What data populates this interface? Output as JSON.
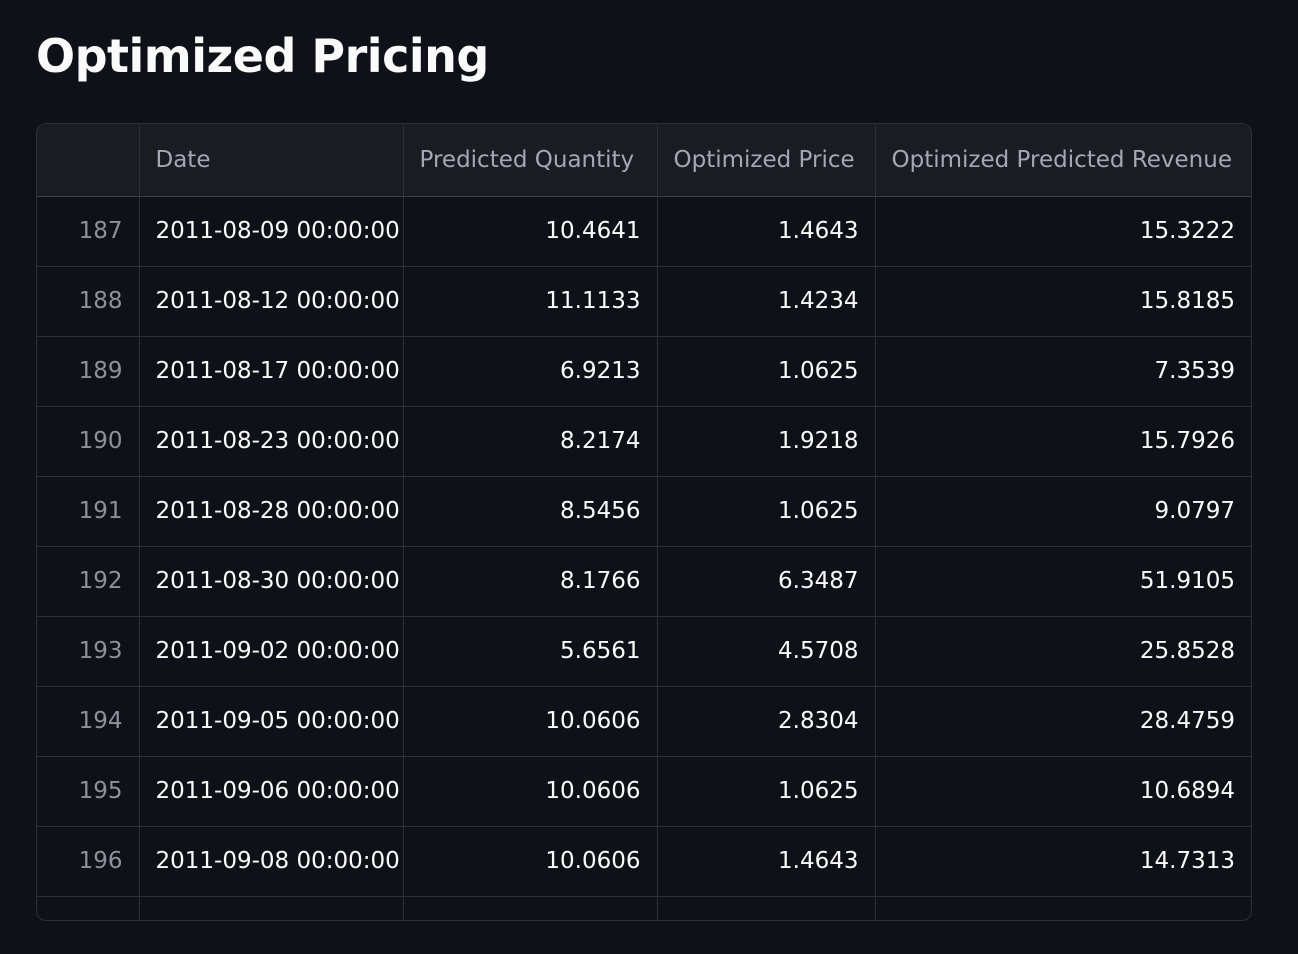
{
  "page": {
    "title": "Optimized Pricing"
  },
  "table": {
    "columns": [
      "",
      "Date",
      "Predicted Quantity",
      "Optimized Price",
      "Optimized Predicted Revenue"
    ],
    "rows": [
      {
        "index": "187",
        "date": "2011-08-09 00:00:00",
        "quantity": "10.4641",
        "price": "1.4643",
        "revenue": "15.3222"
      },
      {
        "index": "188",
        "date": "2011-08-12 00:00:00",
        "quantity": "11.1133",
        "price": "1.4234",
        "revenue": "15.8185"
      },
      {
        "index": "189",
        "date": "2011-08-17 00:00:00",
        "quantity": "6.9213",
        "price": "1.0625",
        "revenue": "7.3539"
      },
      {
        "index": "190",
        "date": "2011-08-23 00:00:00",
        "quantity": "8.2174",
        "price": "1.9218",
        "revenue": "15.7926"
      },
      {
        "index": "191",
        "date": "2011-08-28 00:00:00",
        "quantity": "8.5456",
        "price": "1.0625",
        "revenue": "9.0797"
      },
      {
        "index": "192",
        "date": "2011-08-30 00:00:00",
        "quantity": "8.1766",
        "price": "6.3487",
        "revenue": "51.9105"
      },
      {
        "index": "193",
        "date": "2011-09-02 00:00:00",
        "quantity": "5.6561",
        "price": "4.5708",
        "revenue": "25.8528"
      },
      {
        "index": "194",
        "date": "2011-09-05 00:00:00",
        "quantity": "10.0606",
        "price": "2.8304",
        "revenue": "28.4759"
      },
      {
        "index": "195",
        "date": "2011-09-06 00:00:00",
        "quantity": "10.0606",
        "price": "1.0625",
        "revenue": "10.6894"
      },
      {
        "index": "196",
        "date": "2011-09-08 00:00:00",
        "quantity": "10.0606",
        "price": "1.4643",
        "revenue": "14.7313"
      }
    ]
  }
}
